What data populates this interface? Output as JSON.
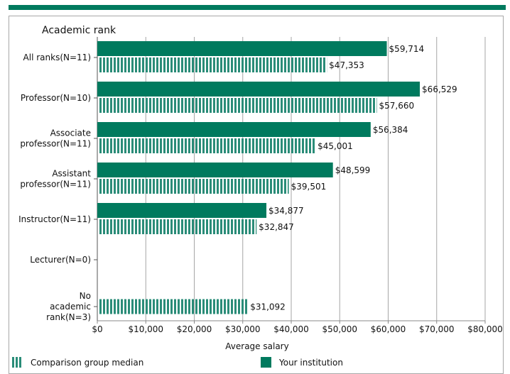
{
  "chart_data": {
    "type": "bar",
    "orientation": "horizontal",
    "title": "Academic rank",
    "xlabel": "Average salary",
    "xlim": [
      0,
      80000
    ],
    "xticks": [
      "$0",
      "$10,000",
      "$20,000",
      "$30,000",
      "$40,000",
      "$50,000",
      "$60,000",
      "$70,000",
      "$80,000"
    ],
    "categories": [
      [
        "All ranks(N=11)"
      ],
      [
        "Professor(N=10)"
      ],
      [
        "Associate",
        "professor(N=11)"
      ],
      [
        "Assistant",
        "professor(N=11)"
      ],
      [
        "Instructor(N=11)"
      ],
      [
        "Lecturer(N=0)"
      ],
      [
        "No",
        "academic",
        "rank(N=3)"
      ]
    ],
    "series": [
      {
        "name": "Your institution",
        "color": "#007a5e",
        "style": "solid",
        "values": [
          59714,
          66529,
          56384,
          48599,
          34877,
          null,
          null
        ],
        "labels": [
          "$59,714",
          "$66,529",
          "$56,384",
          "$48,599",
          "$34,877",
          "",
          ""
        ]
      },
      {
        "name": "Comparison group median",
        "color": "#2a8c78",
        "style": "striped",
        "values": [
          47353,
          57660,
          45001,
          39501,
          32847,
          null,
          31092
        ],
        "labels": [
          "$47,353",
          "$57,660",
          "$45,001",
          "$39,501",
          "$32,847",
          "",
          "$31,092"
        ]
      }
    ],
    "grid": true,
    "legend_position": "bottom"
  },
  "legend": {
    "comparison_label": "Comparison group median",
    "institution_label": "Your institution"
  }
}
